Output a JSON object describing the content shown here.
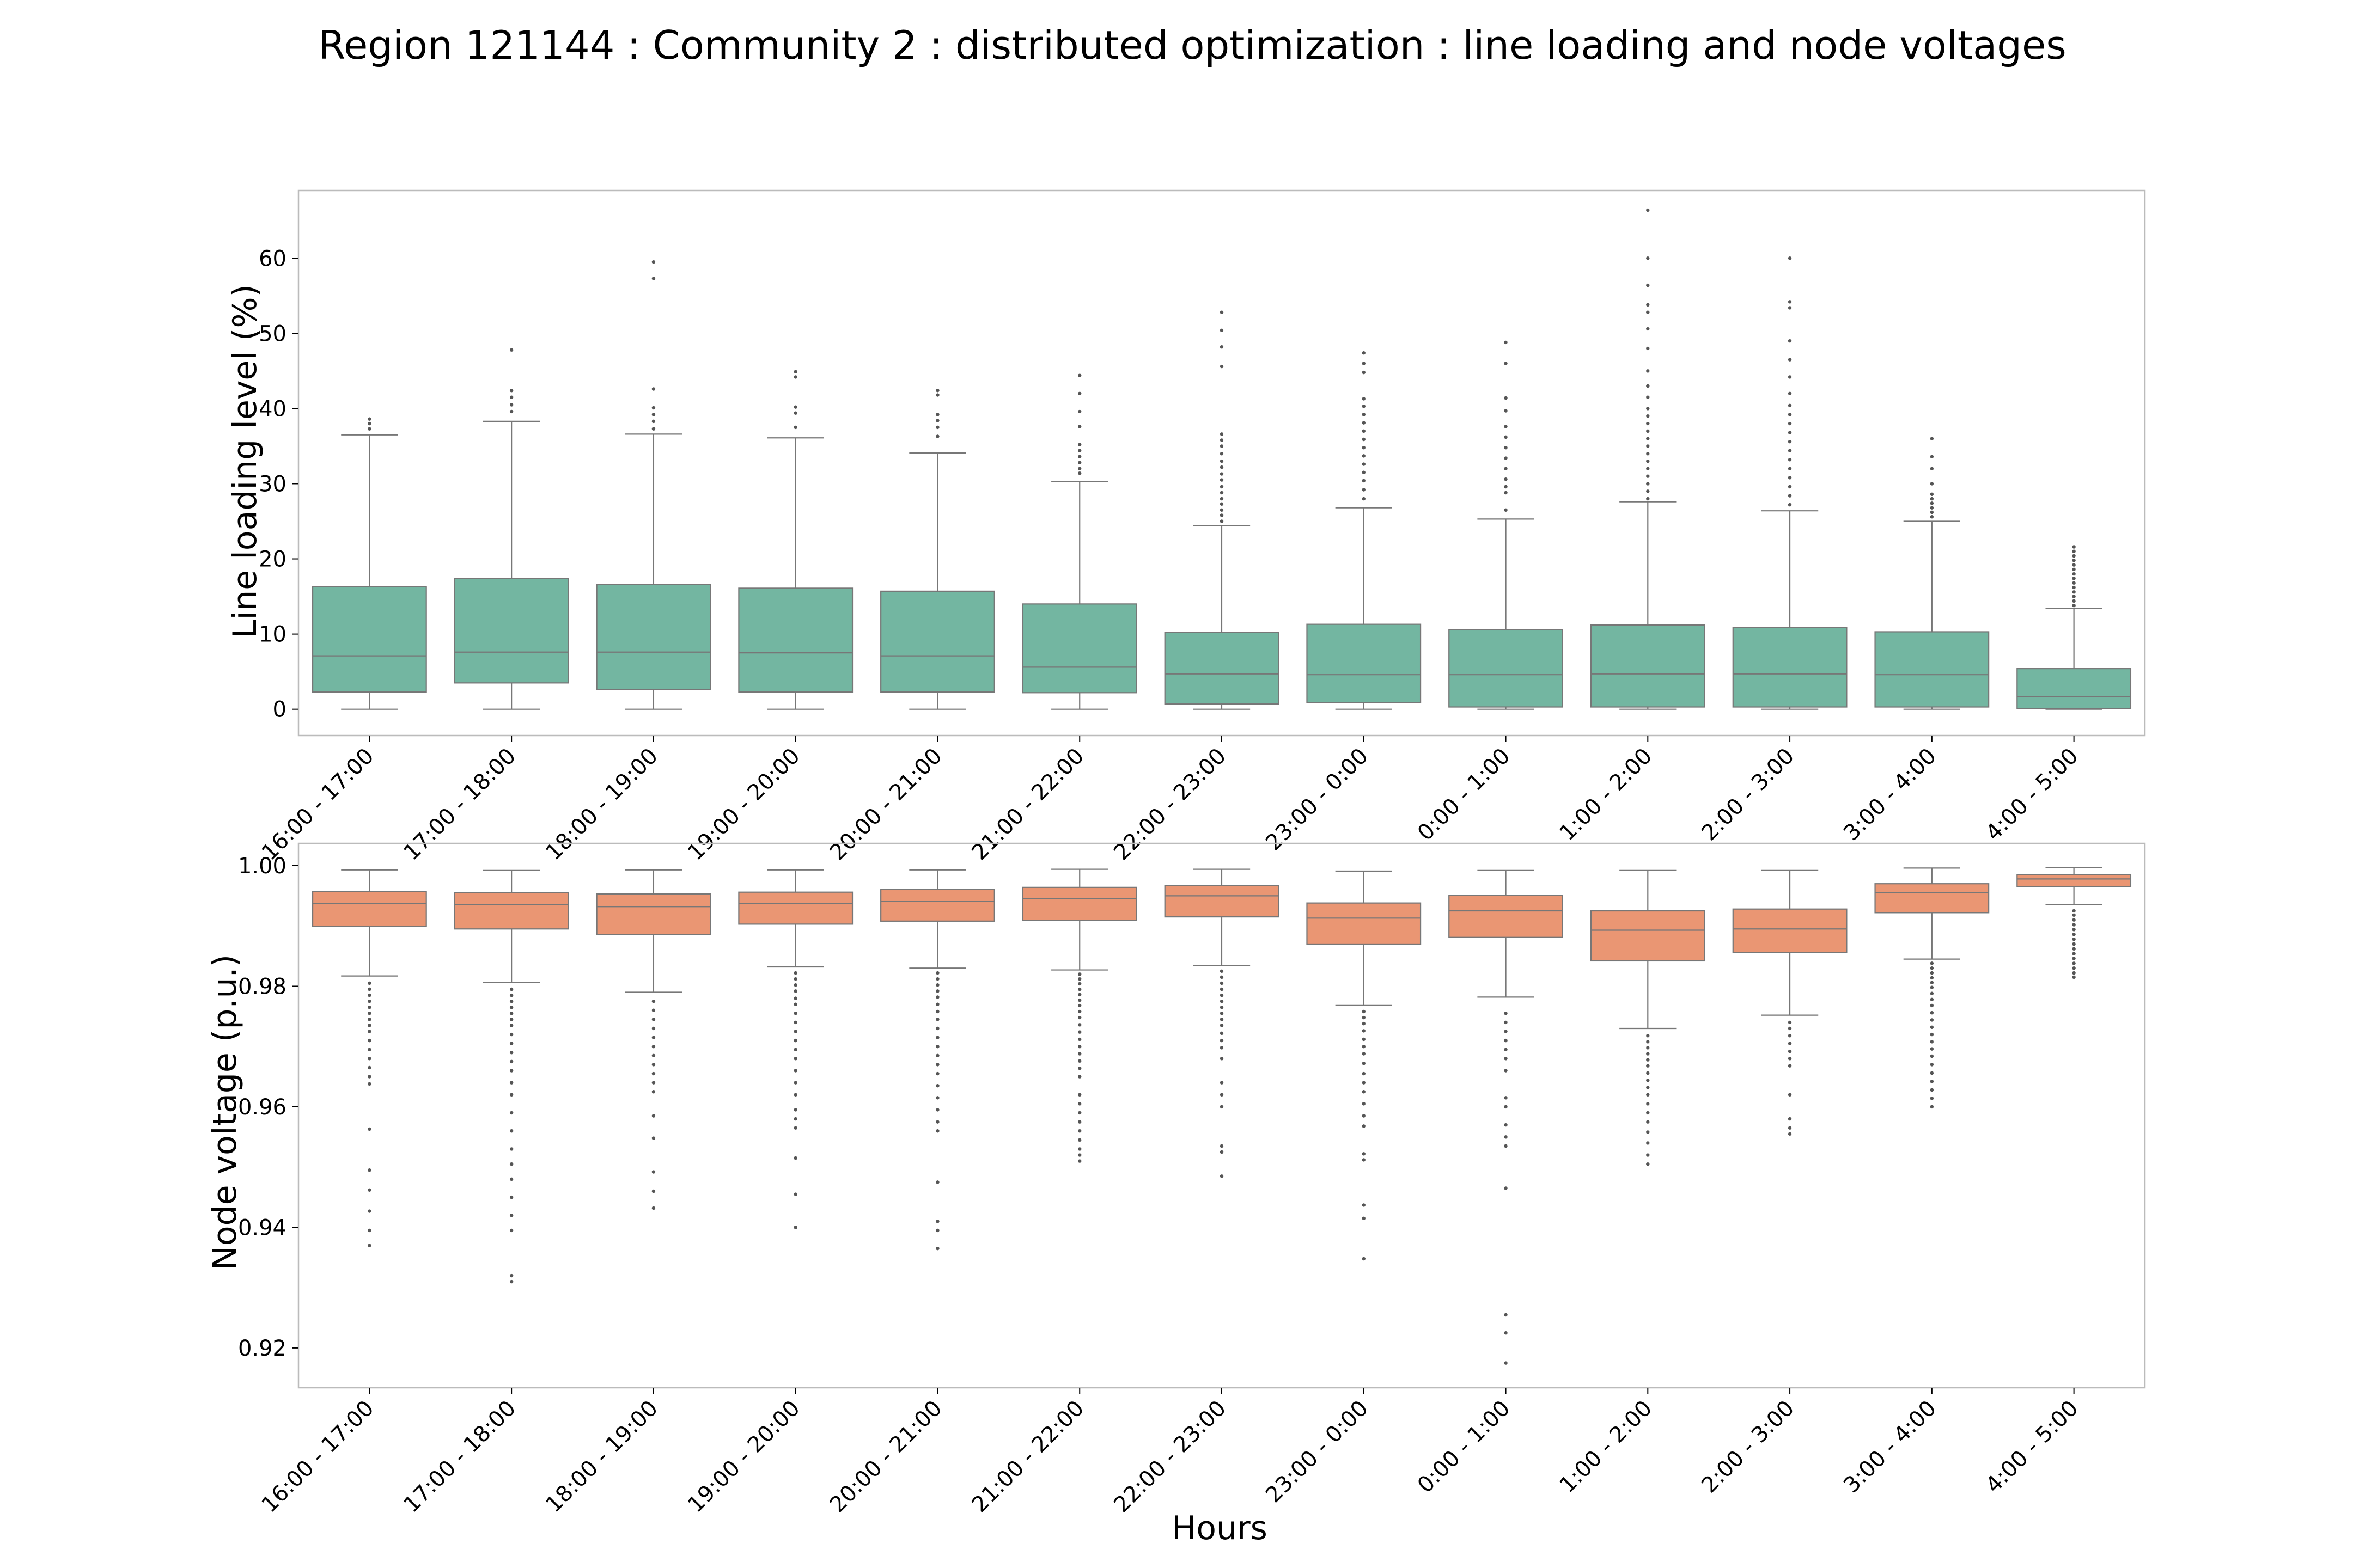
{
  "figure": {
    "title": "Region 121144 : Community 2 : distributed optimization : line loading and node voltages"
  },
  "chart_data": [
    {
      "type": "box",
      "ylabel": "Line loading level (%)",
      "xlabel": "",
      "ylim": [
        -3.5,
        69
      ],
      "yticks": [
        "0",
        "10",
        "20",
        "30",
        "40",
        "50",
        "60"
      ],
      "ytick_values": [
        0,
        10,
        20,
        30,
        40,
        50,
        60
      ],
      "color": "#73b6a1",
      "grid": false,
      "categories": [
        "16:00 - 17:00",
        "17:00 - 18:00",
        "18:00 - 19:00",
        "19:00 - 20:00",
        "20:00 - 21:00",
        "21:00 - 22:00",
        "22:00 - 23:00",
        "23:00 - 0:00",
        "0:00 - 1:00",
        "1:00 - 2:00",
        "2:00 - 3:00",
        "3:00 - 4:00",
        "4:00 - 5:00"
      ],
      "boxes": [
        {
          "whislo": 0,
          "q1": 2.3,
          "med": 7.1,
          "q3": 16.3,
          "whishi": 36.5,
          "fliers": [
            37.3,
            38.0,
            38.6
          ]
        },
        {
          "whislo": 0,
          "q1": 3.5,
          "med": 7.6,
          "q3": 17.4,
          "whishi": 38.3,
          "fliers": [
            39.6,
            40.5,
            41.5,
            42.4,
            47.8
          ]
        },
        {
          "whislo": 0,
          "q1": 2.6,
          "med": 7.6,
          "q3": 16.6,
          "whishi": 36.6,
          "fliers": [
            37.3,
            38.3,
            39.2,
            40.1,
            42.6,
            57.3,
            59.5
          ]
        },
        {
          "whislo": 0,
          "q1": 2.3,
          "med": 7.5,
          "q3": 16.1,
          "whishi": 36.1,
          "fliers": [
            37.5,
            39.4,
            40.2,
            44.2,
            44.9
          ]
        },
        {
          "whislo": 0,
          "q1": 2.3,
          "med": 7.1,
          "q3": 15.7,
          "whishi": 34.1,
          "fliers": [
            36.3,
            37.5,
            38.4,
            39.2,
            41.8,
            42.4
          ]
        },
        {
          "whislo": 0,
          "q1": 2.2,
          "med": 5.6,
          "q3": 14.0,
          "whishi": 30.3,
          "fliers": [
            31.4,
            32.0,
            32.8,
            33.6,
            34.4,
            35.2,
            37.6,
            39.6,
            42.0,
            44.4
          ]
        },
        {
          "whislo": 0,
          "q1": 0.7,
          "med": 4.7,
          "q3": 10.2,
          "whishi": 24.4,
          "fliers": [
            25.0,
            25.8,
            26.5,
            27.3,
            28.0,
            28.8,
            29.6,
            30.5,
            31.3,
            32.2,
            33.0,
            34.0,
            35.0,
            35.8,
            36.6,
            45.6,
            48.2,
            50.4,
            52.8
          ]
        },
        {
          "whislo": 0,
          "q1": 0.9,
          "med": 4.6,
          "q3": 11.3,
          "whishi": 26.8,
          "fliers": [
            28.0,
            29.2,
            30.4,
            31.5,
            32.6,
            33.7,
            34.8,
            35.9,
            37.0,
            38.1,
            39.2,
            40.3,
            41.3,
            44.8,
            46.0,
            47.4
          ]
        },
        {
          "whislo": 0,
          "q1": 0.3,
          "med": 4.6,
          "q3": 10.6,
          "whishi": 25.3,
          "fliers": [
            26.5,
            28.8,
            29.6,
            30.6,
            32.0,
            33.4,
            34.8,
            36.2,
            37.6,
            39.7,
            41.4,
            46.0,
            48.8
          ]
        },
        {
          "whislo": 0,
          "q1": 0.3,
          "med": 4.7,
          "q3": 11.2,
          "whishi": 27.6,
          "fliers": [
            28.0,
            29.0,
            30.0,
            31.0,
            32.0,
            33.0,
            34.0,
            35.0,
            36.0,
            37.0,
            38.0,
            39.0,
            40.0,
            41.5,
            43.0,
            45.0,
            48.0,
            50.6,
            52.8,
            53.8,
            56.4,
            60.0,
            66.4
          ]
        },
        {
          "whislo": 0,
          "q1": 0.3,
          "med": 4.7,
          "q3": 10.9,
          "whishi": 26.4,
          "fliers": [
            27.2,
            28.4,
            29.6,
            30.8,
            32.0,
            33.2,
            34.4,
            35.6,
            36.8,
            38.0,
            39.2,
            40.4,
            42.0,
            44.2,
            46.5,
            49.0,
            53.4,
            54.2,
            60.0
          ]
        },
        {
          "whislo": 0,
          "q1": 0.3,
          "med": 4.6,
          "q3": 10.3,
          "whishi": 25.0,
          "fliers": [
            25.6,
            26.2,
            26.8,
            27.4,
            28.0,
            28.6,
            30.0,
            32.0,
            33.6,
            36.0
          ]
        },
        {
          "whislo": 0,
          "q1": 0.1,
          "med": 1.7,
          "q3": 5.4,
          "whishi": 13.4,
          "fliers": [
            13.8,
            14.4,
            15.0,
            15.6,
            16.2,
            16.8,
            17.4,
            18.0,
            18.6,
            19.2,
            19.8,
            20.4,
            21.0,
            21.6
          ]
        }
      ]
    },
    {
      "type": "box",
      "ylabel": "Node voltage (p.u.)",
      "xlabel": "Hours",
      "ylim": [
        0.9134,
        1.0037
      ],
      "yticks": [
        "0.92",
        "0.94",
        "0.96",
        "0.98",
        "1.00"
      ],
      "ytick_values": [
        0.92,
        0.94,
        0.96,
        0.98,
        1.0
      ],
      "color": "#ea9673",
      "grid": false,
      "categories": [
        "16:00 - 17:00",
        "17:00 - 18:00",
        "18:00 - 19:00",
        "19:00 - 20:00",
        "20:00 - 21:00",
        "21:00 - 22:00",
        "22:00 - 23:00",
        "23:00 - 0:00",
        "0:00 - 1:00",
        "1:00 - 2:00",
        "2:00 - 3:00",
        "3:00 - 4:00",
        "4:00 - 5:00"
      ],
      "boxes": [
        {
          "whislo": 0.9817,
          "q1": 0.9899,
          "med": 0.9937,
          "q3": 0.9957,
          "whishi": 0.9993,
          "fliers": [
            0.9805,
            0.9795,
            0.9785,
            0.9775,
            0.9765,
            0.9755,
            0.9745,
            0.9735,
            0.9725,
            0.971,
            0.9695,
            0.968,
            0.9665,
            0.965,
            0.9638,
            0.9563,
            0.9495,
            0.9462,
            0.9427,
            0.9395,
            0.937
          ]
        },
        {
          "whislo": 0.9806,
          "q1": 0.9895,
          "med": 0.9935,
          "q3": 0.9955,
          "whishi": 0.9992,
          "fliers": [
            0.9795,
            0.9785,
            0.9775,
            0.9765,
            0.9755,
            0.9745,
            0.9735,
            0.972,
            0.9705,
            0.969,
            0.9675,
            0.966,
            0.964,
            0.962,
            0.959,
            0.956,
            0.953,
            0.9505,
            0.948,
            0.945,
            0.942,
            0.9395,
            0.932,
            0.931
          ]
        },
        {
          "whislo": 0.979,
          "q1": 0.9886,
          "med": 0.9932,
          "q3": 0.9953,
          "whishi": 0.9993,
          "fliers": [
            0.9775,
            0.976,
            0.9745,
            0.973,
            0.9715,
            0.97,
            0.9685,
            0.967,
            0.9655,
            0.964,
            0.9625,
            0.9585,
            0.9548,
            0.9492,
            0.946,
            0.9432
          ]
        },
        {
          "whislo": 0.9832,
          "q1": 0.9903,
          "med": 0.9937,
          "q3": 0.9956,
          "whishi": 0.9993,
          "fliers": [
            0.9822,
            0.9812,
            0.9802,
            0.9792,
            0.978,
            0.977,
            0.9755,
            0.974,
            0.9725,
            0.971,
            0.9695,
            0.968,
            0.966,
            0.964,
            0.962,
            0.9595,
            0.958,
            0.9565,
            0.9515,
            0.9455,
            0.94
          ]
        },
        {
          "whislo": 0.983,
          "q1": 0.9908,
          "med": 0.9941,
          "q3": 0.9961,
          "whishi": 0.9993,
          "fliers": [
            0.9822,
            0.9812,
            0.9802,
            0.9792,
            0.9782,
            0.977,
            0.9758,
            0.9745,
            0.973,
            0.9715,
            0.97,
            0.9685,
            0.967,
            0.9655,
            0.9635,
            0.9615,
            0.9595,
            0.9575,
            0.956,
            0.9475,
            0.941,
            0.9395,
            0.9365
          ]
        },
        {
          "whislo": 0.9827,
          "q1": 0.9909,
          "med": 0.9945,
          "q3": 0.9964,
          "whishi": 0.9994,
          "fliers": [
            0.982,
            0.9812,
            0.9804,
            0.9795,
            0.9786,
            0.9777,
            0.9768,
            0.9758,
            0.9748,
            0.9736,
            0.9724,
            0.9712,
            0.97,
            0.9688,
            0.9676,
            0.9664,
            0.965,
            0.962,
            0.9605,
            0.959,
            0.9575,
            0.956,
            0.9545,
            0.953,
            0.952,
            0.951
          ]
        },
        {
          "whislo": 0.9834,
          "q1": 0.9915,
          "med": 0.995,
          "q3": 0.9967,
          "whishi": 0.9994,
          "fliers": [
            0.9825,
            0.9815,
            0.9805,
            0.9795,
            0.9785,
            0.9775,
            0.9765,
            0.9755,
            0.9745,
            0.9735,
            0.9722,
            0.971,
            0.9698,
            0.968,
            0.964,
            0.962,
            0.96,
            0.9535,
            0.9525,
            0.9485
          ]
        },
        {
          "whislo": 0.9768,
          "q1": 0.987,
          "med": 0.9913,
          "q3": 0.9938,
          "whishi": 0.9991,
          "fliers": [
            0.9758,
            0.9748,
            0.9738,
            0.9726,
            0.9712,
            0.97,
            0.9688,
            0.9672,
            0.9655,
            0.964,
            0.9625,
            0.9605,
            0.9585,
            0.9568,
            0.9522,
            0.9512,
            0.9437,
            0.9415,
            0.9348
          ]
        },
        {
          "whislo": 0.9782,
          "q1": 0.9881,
          "med": 0.9925,
          "q3": 0.9951,
          "whishi": 0.9992,
          "fliers": [
            0.9755,
            0.974,
            0.9725,
            0.971,
            0.9695,
            0.968,
            0.966,
            0.9615,
            0.96,
            0.957,
            0.955,
            0.9535,
            0.9465,
            0.9255,
            0.9225,
            0.9175
          ]
        },
        {
          "whislo": 0.973,
          "q1": 0.9842,
          "med": 0.9893,
          "q3": 0.9925,
          "whishi": 0.9992,
          "fliers": [
            0.9718,
            0.9708,
            0.9698,
            0.9688,
            0.9678,
            0.9668,
            0.9656,
            0.9644,
            0.9632,
            0.962,
            0.9605,
            0.959,
            0.9575,
            0.9558,
            0.954,
            0.952,
            0.9505
          ]
        },
        {
          "whislo": 0.9752,
          "q1": 0.9856,
          "med": 0.9895,
          "q3": 0.9928,
          "whishi": 0.9992,
          "fliers": [
            0.974,
            0.973,
            0.9718,
            0.9705,
            0.9692,
            0.968,
            0.9668,
            0.962,
            0.958,
            0.9565,
            0.9555
          ]
        },
        {
          "whislo": 0.9845,
          "q1": 0.9922,
          "med": 0.9955,
          "q3": 0.997,
          "whishi": 0.9996,
          "fliers": [
            0.9838,
            0.983,
            0.9822,
            0.9814,
            0.9806,
            0.9798,
            0.9788,
            0.9778,
            0.9768,
            0.9756,
            0.9744,
            0.9732,
            0.972,
            0.9708,
            0.9696,
            0.9684,
            0.967,
            0.9656,
            0.9642,
            0.9628,
            0.9614,
            0.96
          ]
        },
        {
          "whislo": 0.9935,
          "q1": 0.9965,
          "med": 0.9978,
          "q3": 0.9985,
          "whishi": 0.9997,
          "fliers": [
            0.9925,
            0.9918,
            0.991,
            0.9902,
            0.9894,
            0.9886,
            0.9878,
            0.987,
            0.9862,
            0.9854,
            0.9846,
            0.9838,
            0.983,
            0.9822,
            0.9815
          ]
        }
      ]
    }
  ]
}
